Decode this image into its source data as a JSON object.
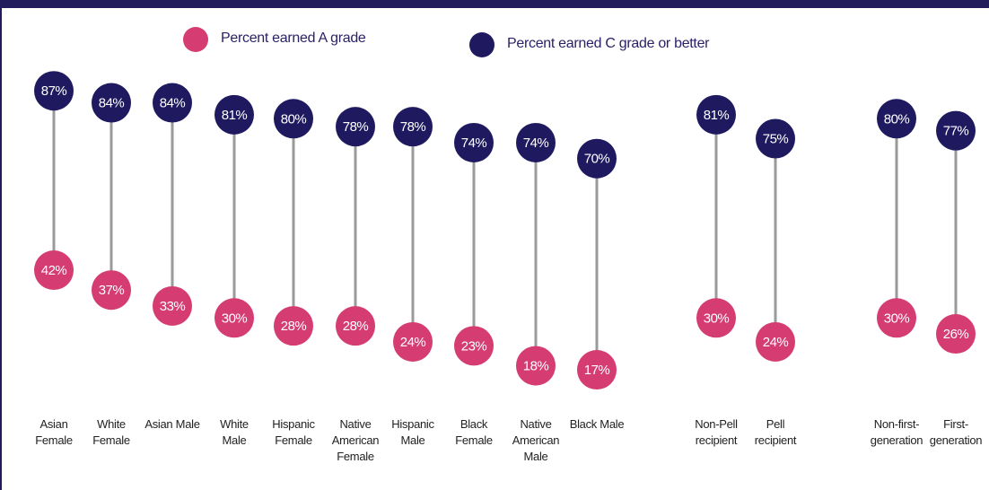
{
  "chart_data": {
    "type": "dumbbell",
    "categories": [
      "Asian Female",
      "White Female",
      "Asian Male",
      "White Male",
      "Hispanic Female",
      "Native American Female",
      "Hispanic Male",
      "Black Female",
      "Native American Male",
      "Black Male",
      "Non-Pell recipient",
      "Pell recipient",
      "Non-first-generation",
      "First-generation"
    ],
    "series": [
      {
        "name": "Percent earned A grade",
        "color": "#d43c72",
        "values": [
          42,
          37,
          33,
          30,
          28,
          28,
          24,
          23,
          18,
          17,
          30,
          24,
          30,
          26
        ],
        "value_labels": [
          "42%",
          "37%",
          "33%",
          "30%",
          "28%",
          "28%",
          "24%",
          "23%",
          "18%",
          "17%",
          "30%",
          "24%",
          "30%",
          "26%"
        ]
      },
      {
        "name": "Percent earned C grade or better",
        "color": "#1f1a5f",
        "values": [
          87,
          84,
          84,
          81,
          80,
          78,
          78,
          74,
          74,
          70,
          81,
          75,
          80,
          77
        ],
        "value_labels": [
          "87%",
          "84%",
          "84%",
          "81%",
          "80%",
          "78%",
          "78%",
          "74%",
          "74%",
          "70%",
          "81%",
          "75%",
          "80%",
          "77%"
        ]
      }
    ],
    "ylim": [
      0,
      100
    ]
  }
}
